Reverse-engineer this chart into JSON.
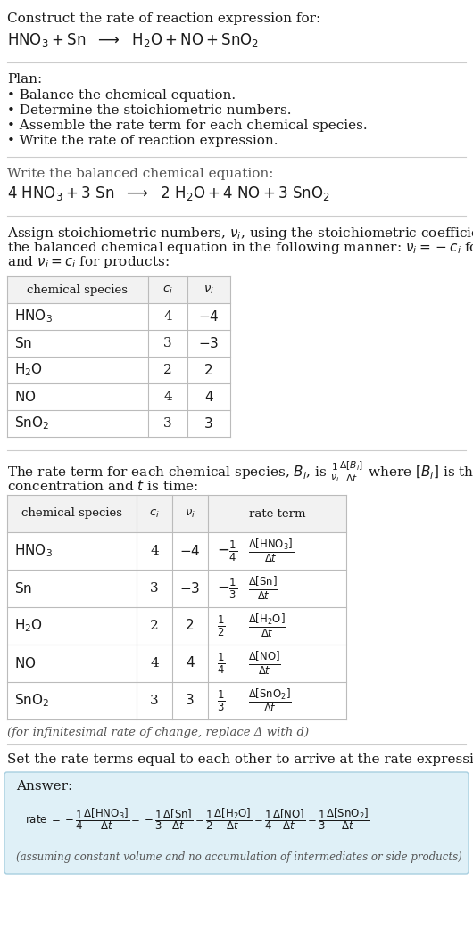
{
  "bg_color": "#ffffff",
  "dark": "#1a1a1a",
  "gray": "#555555",
  "title_line1": "Construct the rate of reaction expression for:",
  "plan_header": "Plan:",
  "plan_items": [
    "• Balance the chemical equation.",
    "• Determine the stoichiometric numbers.",
    "• Assemble the rate term for each chemical species.",
    "• Write the rate of reaction expression."
  ],
  "balanced_header": "Write the balanced chemical equation:",
  "set_equal_header": "Set the rate terms equal to each other to arrive at the rate expression:",
  "answer_box_color": "#dff0f7",
  "answer_border_color": "#a8cfe0",
  "answer_label": "Answer:",
  "footnote": "(assuming constant volume and no accumulation of intermediates or side products)",
  "infinitesimal_note": "(for infinitesimal rate of change, replace Δ with d)",
  "species_math": [
    "HNO_3",
    "Sn",
    "H_2O",
    "NO",
    "SnO_2"
  ],
  "ci_vals": [
    "4",
    "3",
    "2",
    "4",
    "3"
  ],
  "nu_vals": [
    "-4",
    "-3",
    "2",
    "4",
    "3"
  ],
  "fontsize_body": 11,
  "fontsize_small": 9.5,
  "fontsize_formula": 12
}
